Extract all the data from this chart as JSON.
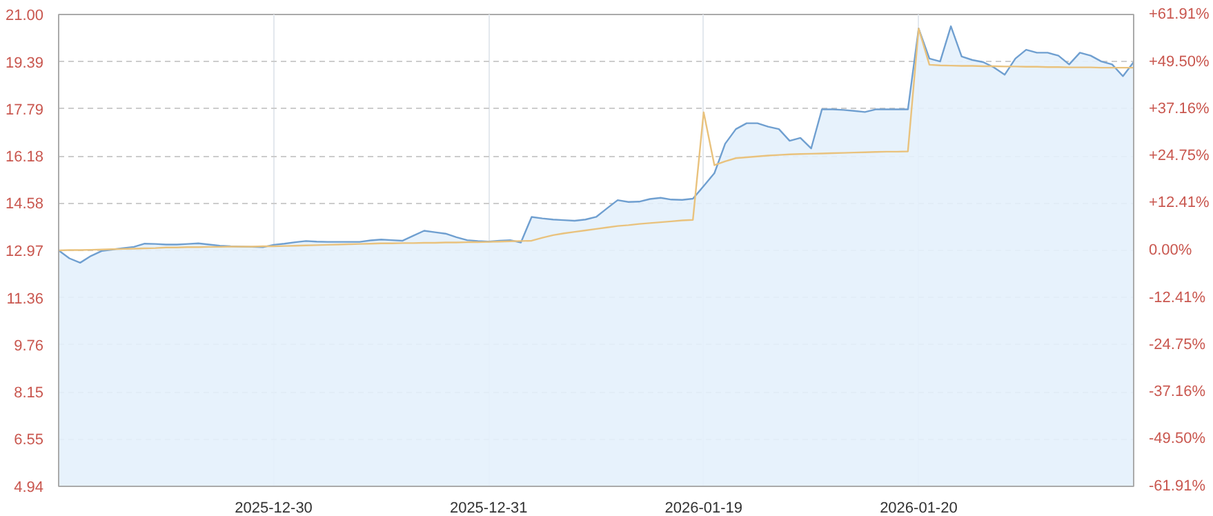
{
  "chart_data": {
    "type": "area",
    "categories": [
      null,
      null,
      null,
      null,
      null,
      null,
      null,
      null,
      null,
      null,
      null,
      null,
      null,
      null,
      null,
      null,
      null,
      null,
      null,
      null,
      "2025-12-30",
      null,
      null,
      null,
      null,
      null,
      null,
      null,
      null,
      null,
      null,
      null,
      null,
      null,
      null,
      null,
      null,
      null,
      null,
      null,
      "2025-12-31",
      null,
      null,
      null,
      null,
      null,
      null,
      null,
      null,
      null,
      null,
      null,
      null,
      null,
      null,
      null,
      null,
      null,
      null,
      null,
      "2026-01-19",
      null,
      null,
      null,
      null,
      null,
      null,
      null,
      null,
      null,
      null,
      null,
      null,
      null,
      null,
      null,
      null,
      null,
      null,
      null,
      "2026-01-20",
      null,
      null,
      null,
      null,
      null,
      null,
      null,
      null,
      null,
      null,
      null,
      null,
      null,
      null,
      null,
      null,
      null,
      null,
      null,
      null
    ],
    "series": [
      {
        "color": "#6f9fd0",
        "values": [
          12.97,
          12.7,
          12.55,
          12.78,
          12.95,
          13.0,
          13.05,
          13.09,
          13.2,
          13.19,
          13.17,
          13.17,
          13.19,
          13.21,
          13.17,
          13.13,
          13.11,
          13.1,
          13.09,
          13.08,
          13.16,
          13.2,
          13.25,
          13.29,
          13.27,
          13.26,
          13.26,
          13.26,
          13.26,
          13.31,
          13.34,
          13.32,
          13.3,
          13.47,
          13.64,
          13.59,
          13.54,
          13.42,
          13.32,
          13.29,
          13.27,
          13.3,
          13.32,
          13.24,
          14.11,
          14.06,
          14.02,
          14.0,
          13.98,
          14.02,
          14.11,
          14.4,
          14.68,
          14.62,
          14.63,
          14.72,
          14.76,
          14.7,
          14.69,
          14.73,
          15.16,
          15.6,
          16.6,
          17.1,
          17.3,
          17.3,
          17.18,
          17.1,
          16.7,
          16.8,
          16.44,
          17.77,
          17.77,
          17.75,
          17.72,
          17.68,
          17.77,
          17.77,
          17.77,
          17.77,
          20.52,
          19.5,
          19.4,
          20.6,
          19.57,
          19.45,
          19.38,
          19.2,
          18.95,
          19.5,
          19.8,
          19.7,
          19.7,
          19.6,
          19.3,
          19.7,
          19.6,
          19.4,
          19.3,
          18.9,
          19.38
        ]
      },
      {
        "type": "line",
        "color": "#e9c27d",
        "values": [
          12.97,
          12.98,
          12.98,
          12.99,
          13.0,
          13.01,
          13.02,
          13.03,
          13.04,
          13.05,
          13.07,
          13.07,
          13.08,
          13.08,
          13.09,
          13.09,
          13.1,
          13.1,
          13.1,
          13.11,
          13.11,
          13.12,
          13.13,
          13.14,
          13.15,
          13.16,
          13.17,
          13.18,
          13.19,
          13.2,
          13.21,
          13.21,
          13.22,
          13.22,
          13.23,
          13.23,
          13.24,
          13.24,
          13.25,
          13.25,
          13.26,
          13.27,
          13.28,
          13.29,
          13.3,
          13.4,
          13.49,
          13.55,
          13.6,
          13.65,
          13.7,
          13.75,
          13.8,
          13.83,
          13.87,
          13.9,
          13.93,
          13.96,
          13.99,
          14.01,
          17.67,
          15.87,
          16.0,
          16.11,
          16.14,
          16.17,
          16.2,
          16.22,
          16.24,
          16.25,
          16.26,
          16.27,
          16.28,
          16.29,
          16.3,
          16.31,
          16.32,
          16.33,
          16.33,
          16.34,
          20.52,
          19.29,
          19.27,
          19.26,
          19.25,
          19.25,
          19.24,
          19.24,
          19.23,
          19.23,
          19.22,
          19.22,
          19.21,
          19.21,
          19.2,
          19.2,
          19.2,
          19.19,
          19.19,
          19.19,
          19.19
        ]
      }
    ],
    "ylim": [
      4.94,
      21.0
    ],
    "yticks": [
      4.94,
      6.55,
      8.15,
      9.76,
      11.36,
      12.97,
      14.58,
      16.18,
      17.79,
      19.39,
      {
        "value": 21.0,
        "label": "21.00"
      }
    ],
    "y2lim": [
      -61.91,
      61.91
    ],
    "y2ticks": [
      {
        "value": -61.91,
        "label": "-61.91%"
      },
      {
        "value": -49.5,
        "label": "-49.50%"
      },
      {
        "value": -37.16,
        "label": "-37.16%"
      },
      {
        "value": -24.75,
        "label": "-24.75%"
      },
      {
        "value": -12.41,
        "label": "-12.41%"
      },
      {
        "value": 0,
        "label": "0.00%"
      },
      {
        "value": 12.41,
        "label": "+12.41%"
      },
      {
        "value": 24.75,
        "label": "+24.75%"
      },
      {
        "value": 37.16,
        "label": "+37.16%"
      },
      {
        "value": 49.5,
        "label": "+49.50%"
      },
      {
        "value": 61.91,
        "label": "+61.91%"
      }
    ],
    "grid": true
  }
}
